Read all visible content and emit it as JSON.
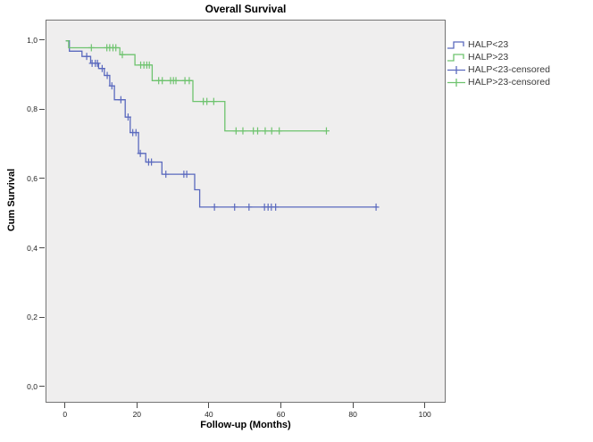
{
  "chart_data": {
    "type": "line",
    "subtype": "kaplan-meier-step",
    "title": "Overall Survival",
    "xlabel": "Follow-up (Months)",
    "ylabel": "Cum Survival",
    "x_ticks": [
      0,
      20,
      40,
      60,
      80,
      100
    ],
    "y_ticks": [
      1.0,
      0.8,
      0.6,
      0.4,
      0.2,
      0.0
    ],
    "y_tick_labels": [
      "1,0",
      "0,8",
      "0,6",
      "0,4",
      "0,2",
      "0,0"
    ],
    "xlim": [
      -5.4,
      105.9
    ],
    "ylim": [
      -0.05,
      1.06
    ],
    "grid": false,
    "legend_position": "top-right-outside",
    "plot_background": "#efeeee",
    "frame_color": "#747474",
    "series": [
      {
        "name": "HALP<23",
        "color": "#5a69be",
        "steps": [
          [
            0,
            1.0
          ],
          [
            1.0,
            0.97
          ],
          [
            4.5,
            0.955
          ],
          [
            6.9,
            0.935
          ],
          [
            9.1,
            0.92
          ],
          [
            10.7,
            0.9
          ],
          [
            12.2,
            0.87
          ],
          [
            13.5,
            0.83
          ],
          [
            16.5,
            0.78
          ],
          [
            17.9,
            0.735
          ],
          [
            20.2,
            0.675
          ],
          [
            22.2,
            0.65
          ],
          [
            26.7,
            0.615
          ],
          [
            35.8,
            0.57
          ],
          [
            37.2,
            0.52
          ]
        ],
        "end_time": 86.6,
        "censored": [
          [
            5.8,
            0.955
          ],
          [
            7.3,
            0.935
          ],
          [
            8.2,
            0.935
          ],
          [
            8.8,
            0.935
          ],
          [
            10.1,
            0.92
          ],
          [
            11.5,
            0.9
          ],
          [
            12.8,
            0.87
          ],
          [
            15.3,
            0.83
          ],
          [
            17.3,
            0.78
          ],
          [
            18.6,
            0.735
          ],
          [
            19.5,
            0.735
          ],
          [
            20.7,
            0.675
          ],
          [
            23.0,
            0.65
          ],
          [
            23.8,
            0.65
          ],
          [
            27.8,
            0.615
          ],
          [
            32.8,
            0.615
          ],
          [
            33.6,
            0.615
          ],
          [
            41.3,
            0.52
          ],
          [
            46.9,
            0.52
          ],
          [
            50.9,
            0.52
          ],
          [
            55.2,
            0.52
          ],
          [
            56.2,
            0.52
          ],
          [
            57.1,
            0.52
          ],
          [
            58.3,
            0.52
          ],
          [
            86.2,
            0.52
          ]
        ]
      },
      {
        "name": "HALP>23",
        "color": "#6ec36e",
        "steps": [
          [
            0,
            1.0
          ],
          [
            0.8,
            0.98
          ],
          [
            15.0,
            0.96
          ],
          [
            19.2,
            0.93
          ],
          [
            24.0,
            0.885
          ],
          [
            35.3,
            0.825
          ],
          [
            44.2,
            0.74
          ]
        ],
        "end_time": 72.6,
        "censored": [
          [
            7.1,
            0.98
          ],
          [
            11.4,
            0.98
          ],
          [
            12.2,
            0.98
          ],
          [
            13.1,
            0.98
          ],
          [
            13.9,
            0.98
          ],
          [
            15.7,
            0.96
          ],
          [
            20.8,
            0.93
          ],
          [
            21.7,
            0.93
          ],
          [
            22.5,
            0.93
          ],
          [
            23.2,
            0.93
          ],
          [
            25.8,
            0.885
          ],
          [
            26.8,
            0.885
          ],
          [
            29.1,
            0.885
          ],
          [
            29.9,
            0.885
          ],
          [
            30.6,
            0.885
          ],
          [
            33.1,
            0.885
          ],
          [
            34.3,
            0.885
          ],
          [
            38.2,
            0.825
          ],
          [
            39.2,
            0.825
          ],
          [
            41.1,
            0.825
          ],
          [
            47.3,
            0.74
          ],
          [
            49.2,
            0.74
          ],
          [
            52.1,
            0.74
          ],
          [
            53.3,
            0.74
          ],
          [
            55.4,
            0.74
          ],
          [
            57.2,
            0.74
          ],
          [
            59.3,
            0.74
          ],
          [
            72.4,
            0.74
          ]
        ]
      }
    ],
    "legend": [
      {
        "label": "HALP<23",
        "color": "#5a69be",
        "marker": "step"
      },
      {
        "label": "HALP>23",
        "color": "#6ec36e",
        "marker": "step"
      },
      {
        "label": "HALP<23-censored",
        "color": "#5a69be",
        "marker": "censor"
      },
      {
        "label": "HALP>23-censored",
        "color": "#6ec36e",
        "marker": "censor"
      }
    ]
  }
}
